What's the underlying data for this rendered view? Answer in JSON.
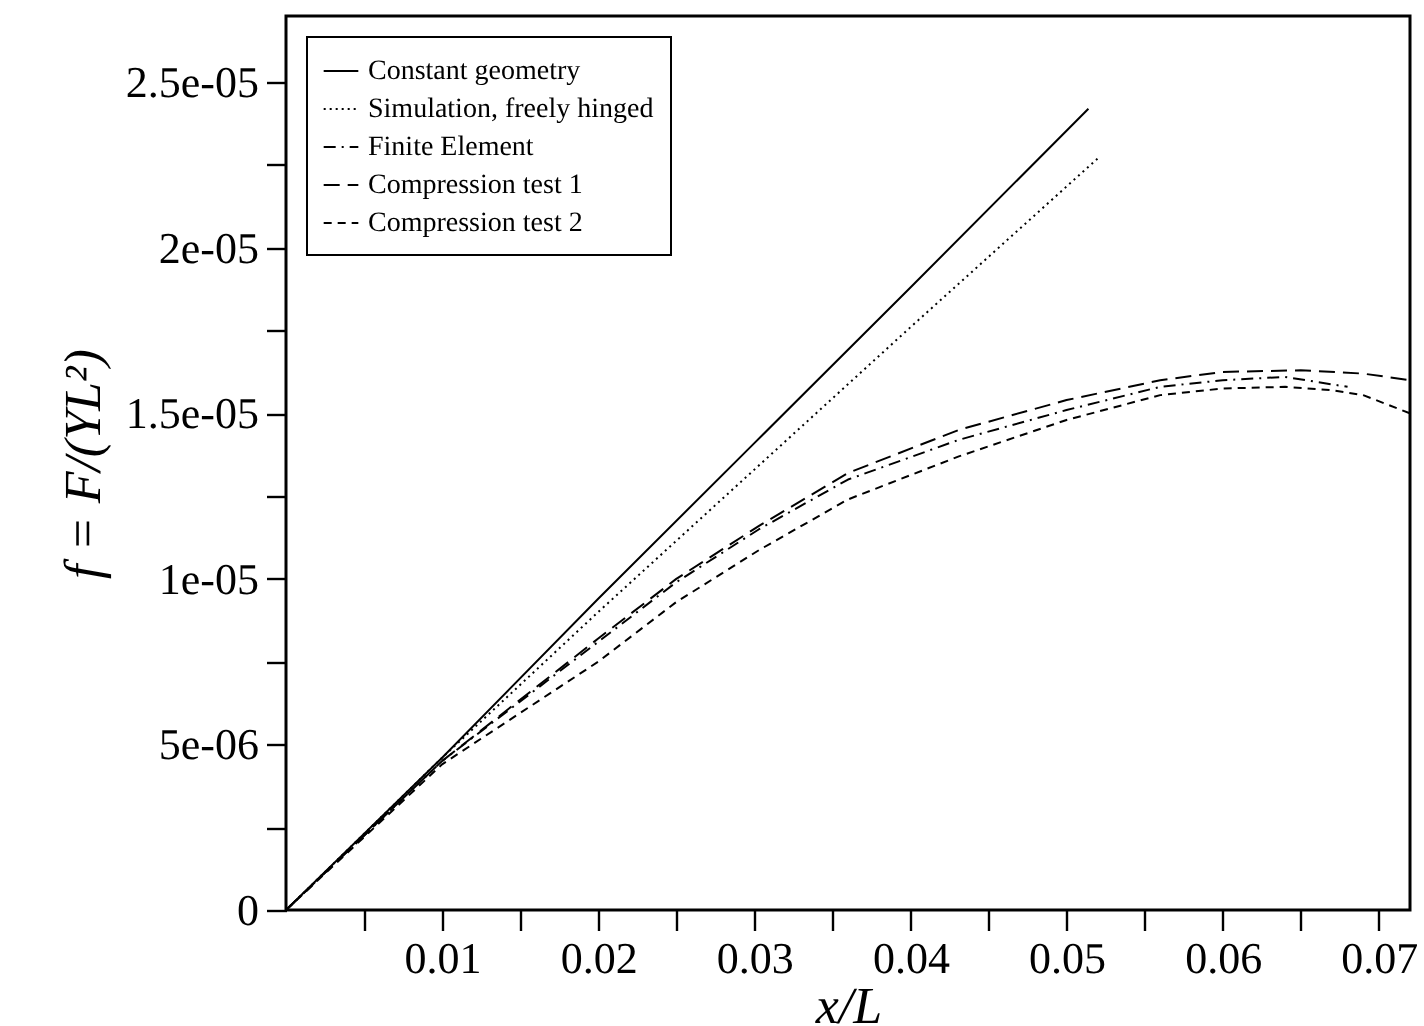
{
  "chart_data": {
    "type": "line",
    "xlabel": "x/L",
    "ylabel": "f = F/(YL²)",
    "xlim": [
      0,
      0.072
    ],
    "ylim": [
      0,
      2.7e-05
    ],
    "xticks": [
      {
        "value": 0.005,
        "label": null
      },
      0.01,
      {
        "value": 0.015,
        "label": null
      },
      0.02,
      {
        "value": 0.025,
        "label": null
      },
      0.03,
      {
        "value": 0.035,
        "label": null
      },
      0.04,
      {
        "value": 0.045,
        "label": null
      },
      0.05,
      {
        "value": 0.055,
        "label": null
      },
      0.06,
      {
        "value": 0.065,
        "label": null
      },
      0.07
    ],
    "yticks": [
      0,
      {
        "value": 2.5e-06,
        "label": null
      },
      {
        "value": 5e-06,
        "label": "5e-06"
      },
      {
        "value": 7.5e-06,
        "label": null
      },
      {
        "value": 1e-05,
        "label": "1e-05"
      },
      {
        "value": 1.25e-05,
        "label": null
      },
      {
        "value": 1.5e-05,
        "label": "1.5e-05"
      },
      {
        "value": 1.75e-05,
        "label": null
      },
      {
        "value": 2e-05,
        "label": "2e-05"
      },
      {
        "value": 2.25e-05,
        "label": null
      },
      {
        "value": 2.5e-05,
        "label": "2.5e-05"
      }
    ],
    "legend": "top left",
    "grid": false,
    "marker": "none",
    "series": [
      {
        "name": "Constant geometry",
        "color": "#000000",
        "line_style": "solid",
        "x": [
          0,
          0.01,
          0.02,
          0.03,
          0.04,
          0.0514
        ],
        "values": [
          0,
          4.6e-06,
          9.4e-06,
          1.41e-05,
          1.88e-05,
          2.42e-05
        ]
      },
      {
        "name": "Simulation, freely hinged",
        "color": "#000000",
        "line_style": "dotted",
        "x": [
          0,
          0.01,
          0.02,
          0.03,
          0.04,
          0.052
        ],
        "values": [
          0,
          4.6e-06,
          9e-06,
          1.33e-05,
          1.76e-05,
          2.27e-05
        ]
      },
      {
        "name": "Finite Element",
        "color": "#000000",
        "line_style": "dashdot",
        "x": [
          0,
          0.01,
          0.02,
          0.025,
          0.0303,
          0.036,
          0.0431,
          0.05,
          0.056,
          0.06,
          0.064,
          0.068
        ],
        "values": [
          0,
          4.5e-06,
          8.1e-06,
          9.9e-06,
          1.15e-05,
          1.3e-05,
          1.42e-05,
          1.51e-05,
          1.58e-05,
          1.6e-05,
          1.61e-05,
          1.58e-05
        ]
      },
      {
        "name": "Compression test 1",
        "color": "#000000",
        "line_style": "dashed",
        "x": [
          0,
          0.01,
          0.02,
          0.025,
          0.0303,
          0.036,
          0.0431,
          0.05,
          0.056,
          0.06,
          0.065,
          0.069,
          0.072
        ],
        "values": [
          0,
          4.5e-06,
          8.2e-06,
          1e-05,
          1.16e-05,
          1.32e-05,
          1.45e-05,
          1.54e-05,
          1.6e-05,
          1.625e-05,
          1.63e-05,
          1.62e-05,
          1.6e-05
        ]
      },
      {
        "name": "Compression test 2",
        "color": "#000000",
        "line_style": "short-dashed",
        "x": [
          0,
          0.01,
          0.02,
          0.025,
          0.0303,
          0.036,
          0.0431,
          0.05,
          0.056,
          0.06,
          0.064,
          0.067,
          0.069,
          0.072
        ],
        "values": [
          0,
          4.4e-06,
          7.5e-06,
          9.3e-06,
          1.087e-05,
          1.24e-05,
          1.37e-05,
          1.48e-05,
          1.555e-05,
          1.575e-05,
          1.58e-05,
          1.57e-05,
          1.555e-05,
          1.5e-05
        ]
      }
    ]
  }
}
